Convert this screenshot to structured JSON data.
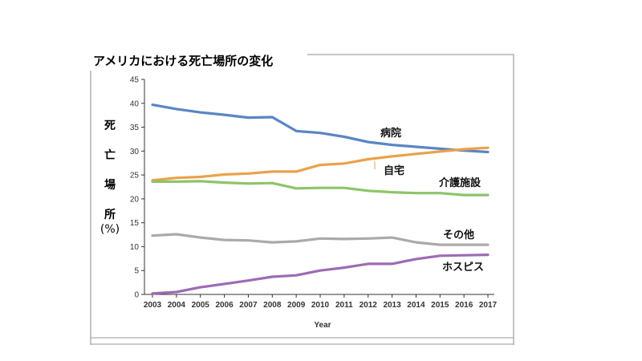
{
  "chart_data": {
    "type": "line",
    "title": "アメリカにおける死亡場所の変化",
    "ylabel_chars": [
      "死",
      "亡",
      "場",
      "所"
    ],
    "ylabel_unit": "(%)",
    "xlabel": "Year",
    "ylim": [
      0,
      45
    ],
    "yticks": [
      0,
      5,
      10,
      15,
      20,
      25,
      30,
      35,
      40,
      45
    ],
    "x": [
      2003,
      2004,
      2005,
      2006,
      2007,
      2008,
      2009,
      2010,
      2011,
      2012,
      2013,
      2014,
      2015,
      2016,
      2017
    ],
    "grid": false,
    "series": [
      {
        "name": "病院",
        "color": "#5B85C5",
        "values": [
          39.7,
          38.8,
          38.1,
          37.6,
          37.0,
          37.1,
          34.2,
          33.8,
          33.0,
          31.9,
          31.3,
          30.9,
          30.5,
          30.1,
          29.8
        ]
      },
      {
        "name": "自宅",
        "color": "#EAA24B",
        "values": [
          23.9,
          24.4,
          24.6,
          25.1,
          25.3,
          25.7,
          25.7,
          27.1,
          27.4,
          28.3,
          28.9,
          29.4,
          29.9,
          30.4,
          30.7
        ]
      },
      {
        "name": "介護施設",
        "color": "#8DC46A",
        "values": [
          23.6,
          23.6,
          23.7,
          23.4,
          23.2,
          23.3,
          22.2,
          22.3,
          22.3,
          21.7,
          21.4,
          21.2,
          21.2,
          20.8,
          20.8
        ]
      },
      {
        "name": "その他",
        "color": "#AAAAAA",
        "values": [
          12.3,
          12.6,
          11.9,
          11.4,
          11.3,
          10.9,
          11.1,
          11.7,
          11.6,
          11.7,
          11.9,
          10.9,
          10.4,
          10.4,
          10.4
        ]
      },
      {
        "name": "ホスピス",
        "color": "#9D6BB5",
        "values": [
          0.2,
          0.5,
          1.5,
          2.2,
          2.9,
          3.7,
          4.0,
          5.0,
          5.6,
          6.4,
          6.4,
          7.4,
          8.1,
          8.2,
          8.3
        ]
      }
    ]
  }
}
